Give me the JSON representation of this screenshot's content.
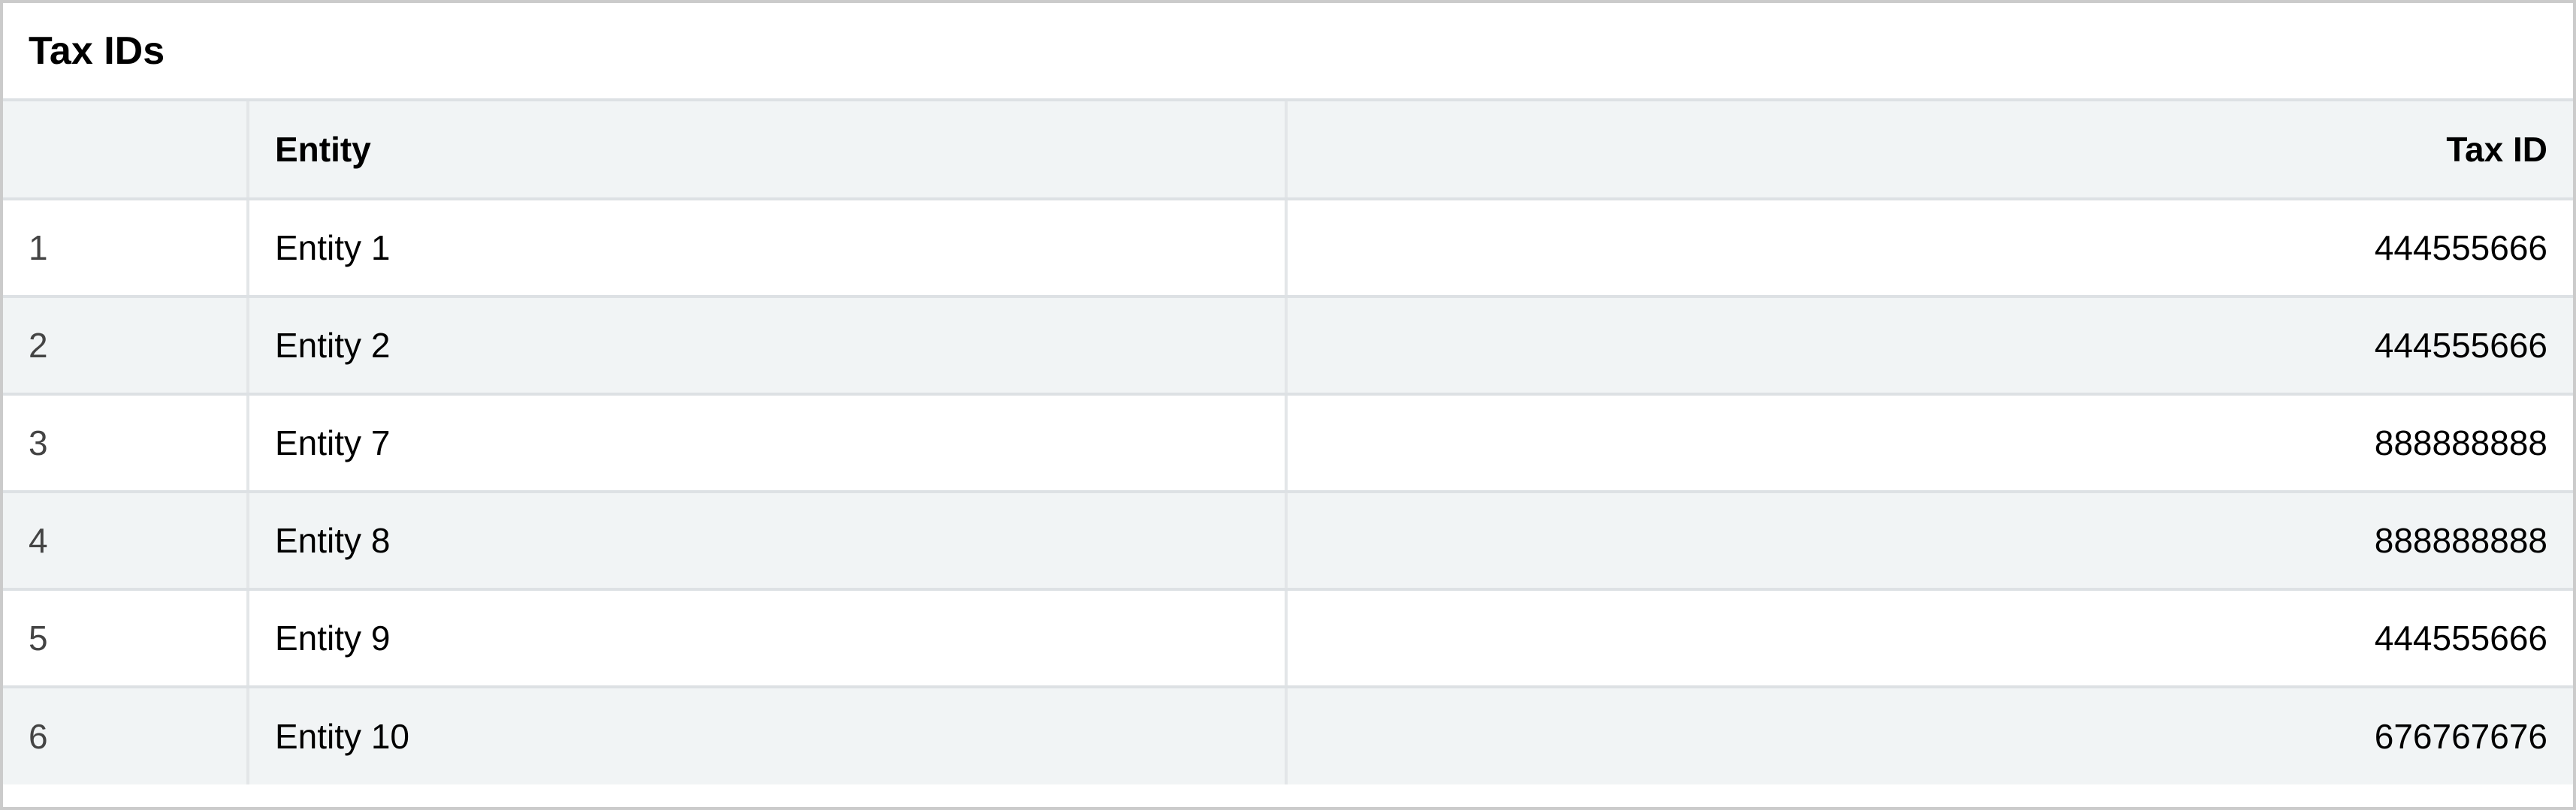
{
  "title": "Tax IDs",
  "columns": [
    "",
    "Entity",
    "Tax ID"
  ],
  "rows": [
    {
      "index": "1",
      "entity": "Entity 1",
      "tax_id": "444555666"
    },
    {
      "index": "2",
      "entity": "Entity 2",
      "tax_id": "444555666"
    },
    {
      "index": "3",
      "entity": "Entity 7",
      "tax_id": "888888888"
    },
    {
      "index": "4",
      "entity": "Entity 8",
      "tax_id": "888888888"
    },
    {
      "index": "5",
      "entity": "Entity 9",
      "tax_id": "444555666"
    },
    {
      "index": "6",
      "entity": "Entity 10",
      "tax_id": "676767676"
    }
  ]
}
